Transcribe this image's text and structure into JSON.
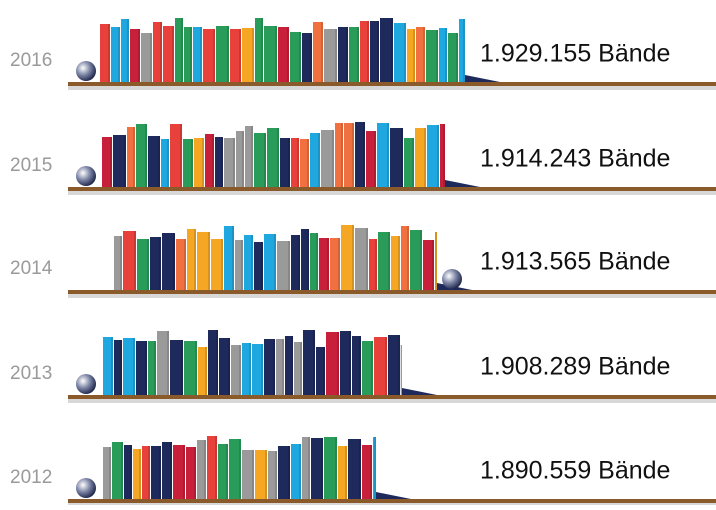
{
  "rows": [
    {
      "year": "2016",
      "volumes": "1.929.155 Bände"
    },
    {
      "year": "2015",
      "volumes": "1.914.243 Bände"
    },
    {
      "year": "2014",
      "volumes": "1.913.565 Bände"
    },
    {
      "year": "2013",
      "volumes": "1.908.289 Bände"
    },
    {
      "year": "2012",
      "volumes": "1.890.559 Bände"
    }
  ]
}
